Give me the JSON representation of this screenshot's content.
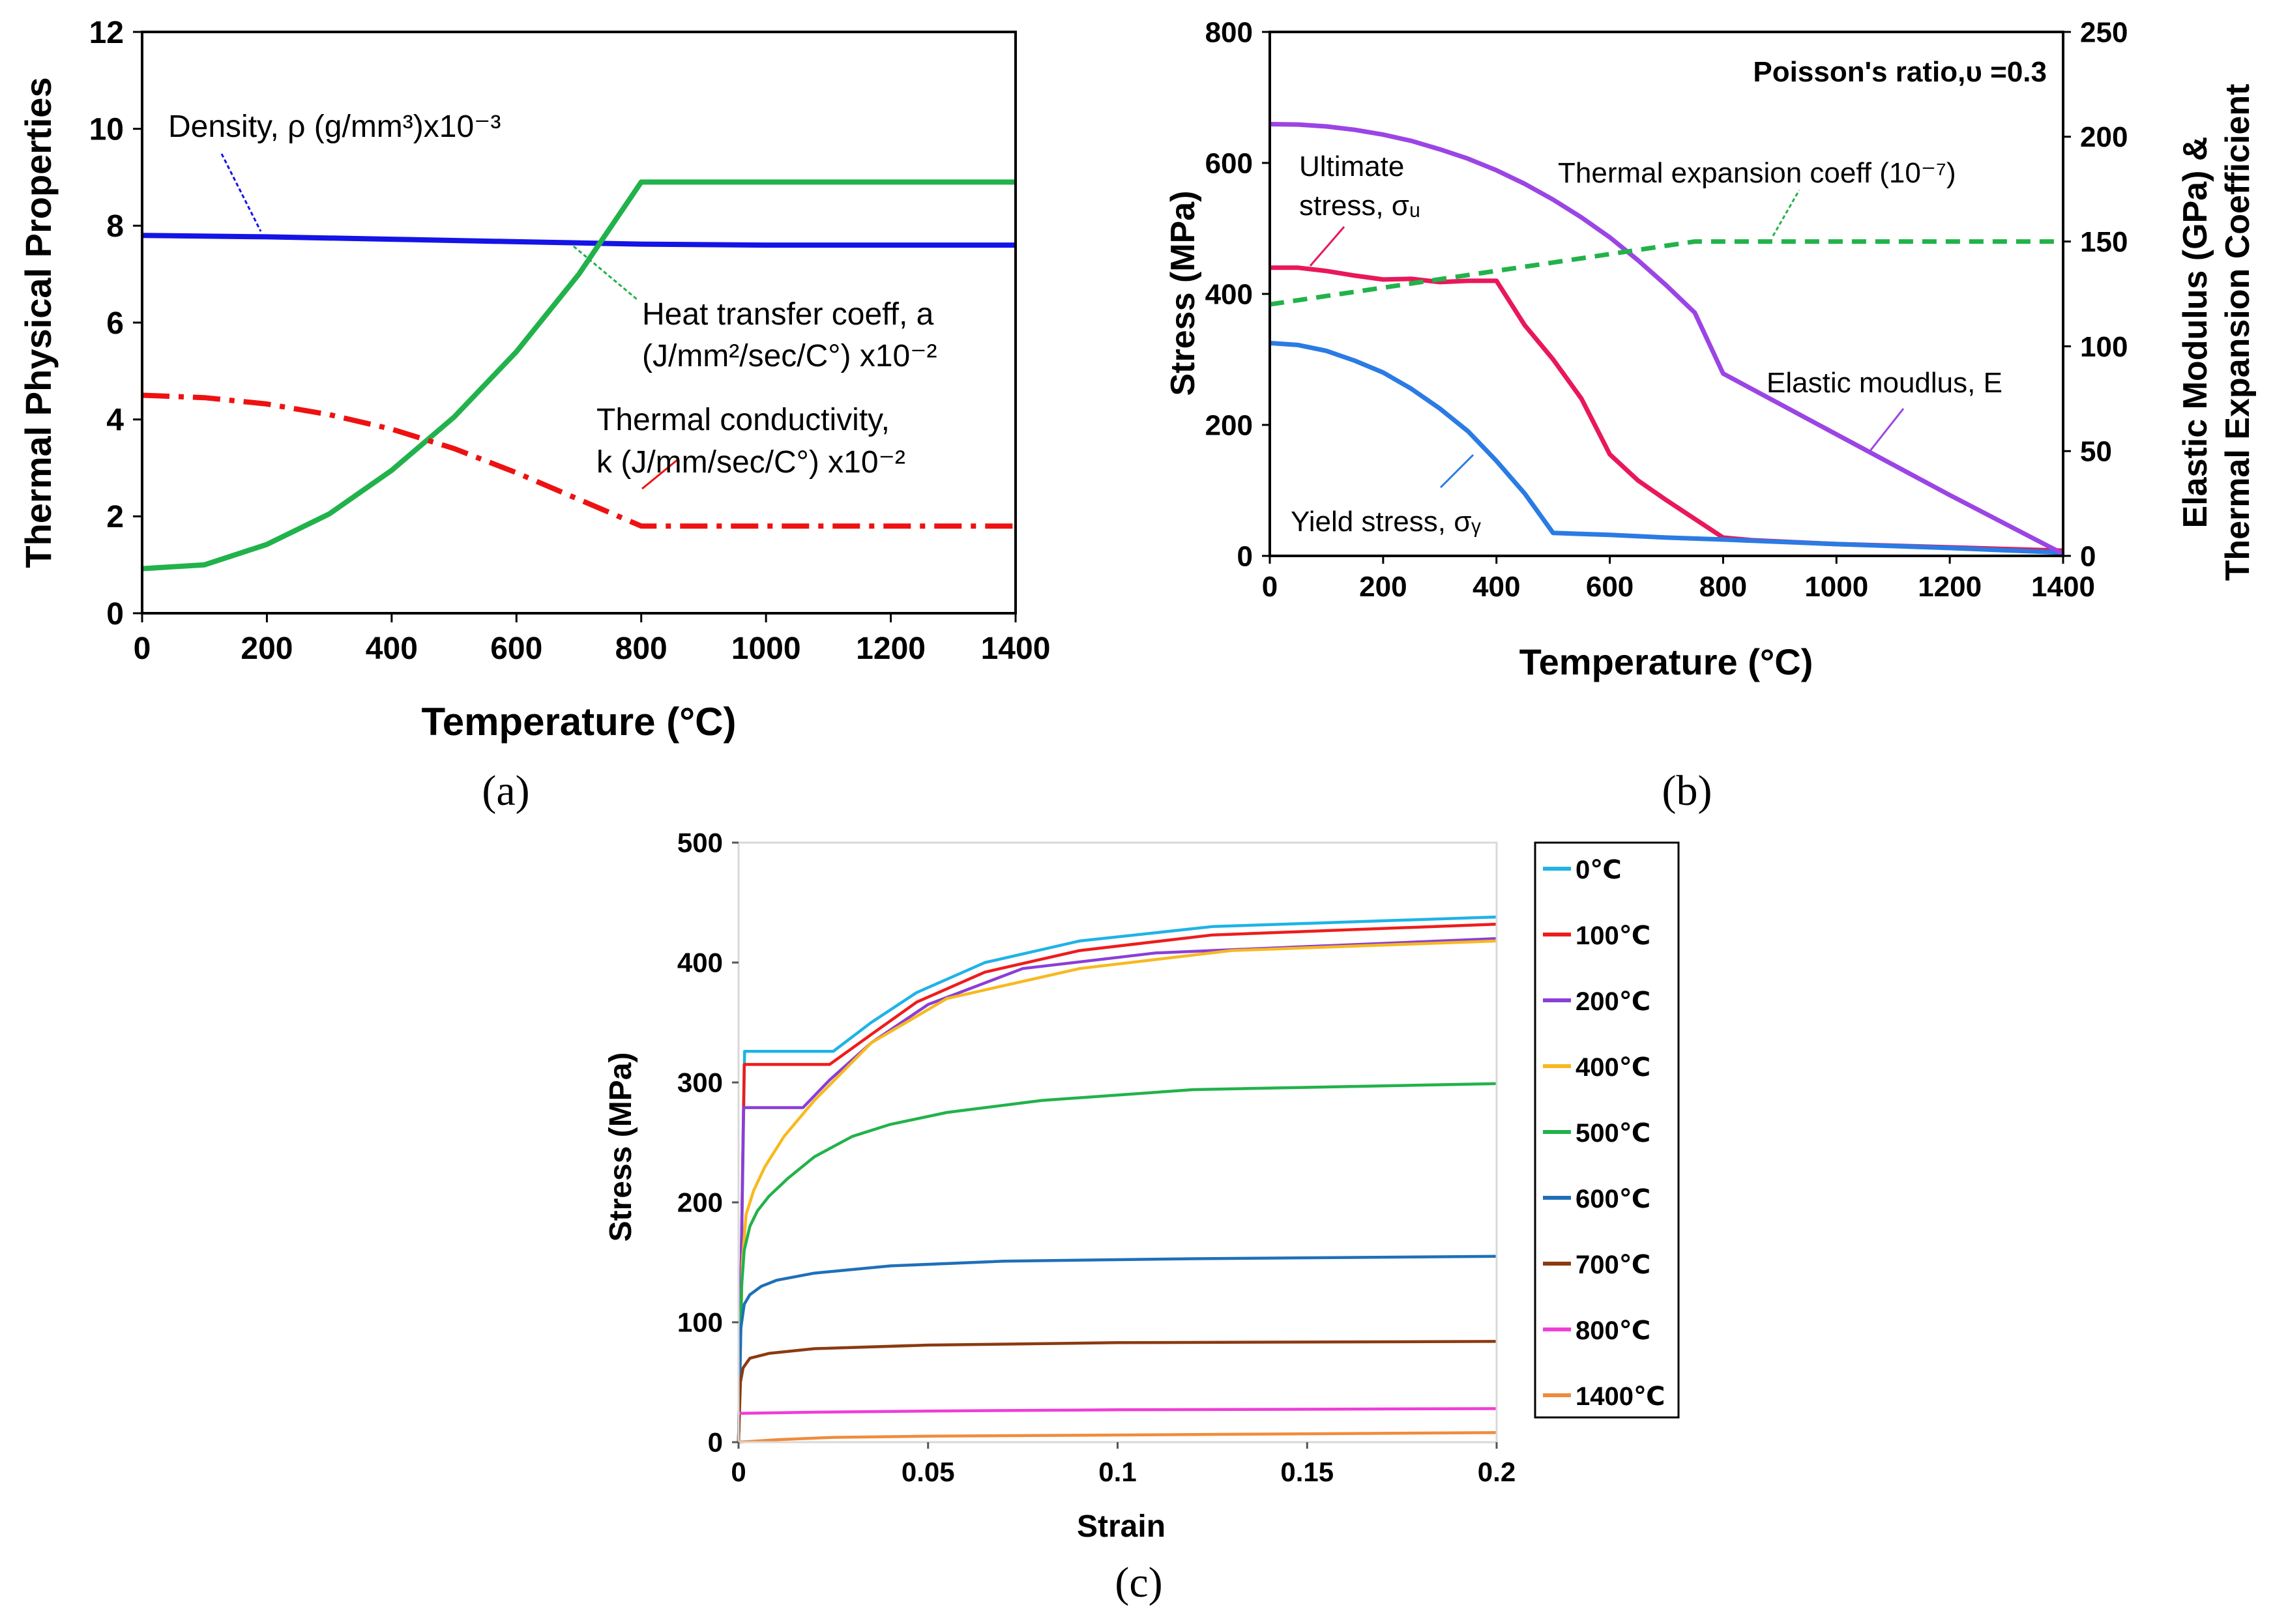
{
  "charts": [
    {
      "type": "line",
      "panel_label": "(a)",
      "xlabel": "Temperature (°C)",
      "ylabel": "Thermal Physical Properties",
      "xlim": [
        0,
        1400
      ],
      "ylim": [
        0,
        12
      ],
      "x_ticks": [
        "0",
        "200",
        "400",
        "600",
        "800",
        "1000",
        "1200",
        "1400"
      ],
      "y_ticks": [
        "0",
        "2",
        "4",
        "6",
        "8",
        "10",
        "12"
      ],
      "grid": false,
      "legend": "none (callout labels)",
      "colors": {
        "density": "#1414e6",
        "heat_transfer": "#21b24b",
        "conductivity": "#ee1111"
      },
      "series": [
        {
          "name": "Density, ρ (g/mm³)x10⁻³",
          "style": "solid",
          "color": "#1414e6",
          "points": [
            [
              0,
              7.8
            ],
            [
              200,
              7.77
            ],
            [
              400,
              7.72
            ],
            [
              600,
              7.67
            ],
            [
              800,
              7.62
            ],
            [
              1000,
              7.6
            ],
            [
              1200,
              7.6
            ],
            [
              1400,
              7.6
            ]
          ]
        },
        {
          "name": "Heat transfer coeff, a (J/mm²/sec/C°) x10⁻²",
          "style": "solid",
          "color": "#21b24b",
          "points": [
            [
              0,
              0.92
            ],
            [
              100,
              1.0
            ],
            [
              200,
              1.42
            ],
            [
              300,
              2.05
            ],
            [
              400,
              2.95
            ],
            [
              500,
              4.05
            ],
            [
              600,
              5.4
            ],
            [
              700,
              7.0
            ],
            [
              800,
              8.9
            ],
            [
              900,
              8.9
            ],
            [
              1000,
              8.9
            ],
            [
              1100,
              8.9
            ],
            [
              1200,
              8.9
            ],
            [
              1300,
              8.9
            ],
            [
              1400,
              8.9
            ]
          ]
        },
        {
          "name": "Thermal conductivity, k (J/mm/sec/C°) x10⁻²",
          "style": "dashdot",
          "color": "#ee1111",
          "points": [
            [
              0,
              4.5
            ],
            [
              100,
              4.45
            ],
            [
              200,
              4.32
            ],
            [
              300,
              4.1
            ],
            [
              400,
              3.8
            ],
            [
              500,
              3.4
            ],
            [
              600,
              2.9
            ],
            [
              700,
              2.35
            ],
            [
              800,
              1.8
            ],
            [
              900,
              1.8
            ],
            [
              1000,
              1.8
            ],
            [
              1100,
              1.8
            ],
            [
              1200,
              1.8
            ],
            [
              1300,
              1.8
            ],
            [
              1400,
              1.8
            ]
          ]
        }
      ]
    },
    {
      "type": "line",
      "panel_label": "(b)",
      "xlabel": "Temperature (°C)",
      "ylabel": "Stress (MPa)",
      "y2label": "Elastic Modulus (GPa) & Thermal Expansion Coefficient",
      "xlim": [
        0,
        1400
      ],
      "ylim": [
        0,
        800
      ],
      "y2lim": [
        0,
        250
      ],
      "x_ticks": [
        "0",
        "200",
        "400",
        "600",
        "800",
        "1000",
        "1200",
        "1400"
      ],
      "y_ticks": [
        "0",
        "200",
        "400",
        "600",
        "800"
      ],
      "y2_ticks": [
        "0",
        "50",
        "100",
        "150",
        "200",
        "250"
      ],
      "grid": false,
      "legend": "none (callout labels)",
      "annotation": "Poisson's ratio,υ =0.3",
      "colors": {
        "ultimate": "#e8185a",
        "yield": "#2a7be4",
        "modulus": "#9b45e4",
        "expansion": "#22b24a"
      },
      "series": [
        {
          "name": "Ultimate stress, σu",
          "axis": "left",
          "style": "solid",
          "color": "#e8185a",
          "points": [
            [
              0,
              440
            ],
            [
              50,
              440
            ],
            [
              100,
              435
            ],
            [
              150,
              428
            ],
            [
              200,
              422
            ],
            [
              250,
              423
            ],
            [
              300,
              418
            ],
            [
              350,
              420
            ],
            [
              400,
              420
            ],
            [
              450,
              352
            ],
            [
              500,
              300
            ],
            [
              550,
              240
            ],
            [
              600,
              155
            ],
            [
              650,
              115
            ],
            [
              700,
              85
            ],
            [
              800,
              28
            ],
            [
              850,
              24
            ],
            [
              1000,
              18
            ],
            [
              1200,
              13
            ],
            [
              1400,
              8
            ]
          ]
        },
        {
          "name": "Yield stress, σy",
          "axis": "left",
          "style": "solid",
          "color": "#2a7be4",
          "points": [
            [
              0,
              325
            ],
            [
              50,
              322
            ],
            [
              100,
              313
            ],
            [
              150,
              298
            ],
            [
              200,
              280
            ],
            [
              250,
              255
            ],
            [
              300,
              225
            ],
            [
              350,
              190
            ],
            [
              400,
              145
            ],
            [
              450,
              95
            ],
            [
              500,
              35
            ],
            [
              600,
              32
            ],
            [
              700,
              28
            ],
            [
              800,
              25
            ],
            [
              1000,
              18
            ],
            [
              1200,
              12
            ],
            [
              1400,
              5
            ]
          ]
        },
        {
          "name": "Elastic moudlus, E",
          "axis": "right",
          "style": "solid",
          "color": "#9b45e4",
          "points": [
            [
              0,
              206
            ],
            [
              50,
              205.8
            ],
            [
              100,
              204.9
            ],
            [
              150,
              203.3
            ],
            [
              200,
              201
            ],
            [
              250,
              198
            ],
            [
              300,
              194
            ],
            [
              350,
              189.5
            ],
            [
              400,
              184
            ],
            [
              450,
              177.5
            ],
            [
              500,
              170
            ],
            [
              550,
              161.5
            ],
            [
              600,
              152
            ],
            [
              650,
              141
            ],
            [
              700,
              129
            ],
            [
              750,
              116
            ],
            [
              800,
              87
            ],
            [
              1000,
              58
            ],
            [
              1200,
              29
            ],
            [
              1400,
              1
            ]
          ]
        },
        {
          "name": "Thermal expansion coeff (10⁻⁷)",
          "axis": "right",
          "style": "dashed",
          "color": "#22b24a",
          "points": [
            [
              0,
              120
            ],
            [
              100,
              124
            ],
            [
              200,
              128
            ],
            [
              300,
              132
            ],
            [
              400,
              136
            ],
            [
              500,
              140
            ],
            [
              600,
              144
            ],
            [
              700,
              148
            ],
            [
              750,
              150
            ],
            [
              900,
              150
            ],
            [
              1000,
              150
            ],
            [
              1200,
              150
            ],
            [
              1400,
              150
            ]
          ]
        }
      ]
    },
    {
      "type": "line",
      "panel_label": "(c)",
      "xlabel": "Strain",
      "ylabel": "Stress (MPa)",
      "xlim": [
        0,
        0.2
      ],
      "ylim": [
        0,
        500
      ],
      "x_ticks": [
        "0",
        "0.05",
        "0.1",
        "0.15",
        "0.2"
      ],
      "y_ticks": [
        "0",
        "100",
        "200",
        "300",
        "400",
        "500"
      ],
      "grid": false,
      "legend": "right",
      "series": [
        {
          "name": "0℃",
          "color": "#1fb3e6",
          "points": [
            [
              0,
              0
            ],
            [
              0.0016,
              326
            ],
            [
              0.025,
              326
            ],
            [
              0.035,
              350
            ],
            [
              0.047,
              375
            ],
            [
              0.065,
              400
            ],
            [
              0.09,
              418
            ],
            [
              0.125,
              430
            ],
            [
              0.2,
              438
            ]
          ]
        },
        {
          "name": "100℃",
          "color": "#ee1c1c",
          "points": [
            [
              0,
              0
            ],
            [
              0.0015,
              315
            ],
            [
              0.024,
              315
            ],
            [
              0.035,
              340
            ],
            [
              0.047,
              367
            ],
            [
              0.065,
              392
            ],
            [
              0.09,
              410
            ],
            [
              0.125,
              423
            ],
            [
              0.2,
              432
            ]
          ]
        },
        {
          "name": "200℃",
          "color": "#8a3fd6",
          "points": [
            [
              0,
              0
            ],
            [
              0.0013,
              279
            ],
            [
              0.017,
              279
            ],
            [
              0.024,
              302
            ],
            [
              0.035,
              333
            ],
            [
              0.05,
              365
            ],
            [
              0.075,
              395
            ],
            [
              0.11,
              408
            ],
            [
              0.2,
              420
            ]
          ]
        },
        {
          "name": "400℃",
          "color": "#f7b91f",
          "points": [
            [
              0,
              0
            ],
            [
              0.001,
              150
            ],
            [
              0.002,
              190
            ],
            [
              0.004,
              210
            ],
            [
              0.007,
              230
            ],
            [
              0.012,
              255
            ],
            [
              0.02,
              285
            ],
            [
              0.035,
              333
            ],
            [
              0.055,
              370
            ],
            [
              0.09,
              395
            ],
            [
              0.13,
              410
            ],
            [
              0.2,
              418
            ]
          ]
        },
        {
          "name": "500℃",
          "color": "#22b24a",
          "points": [
            [
              0,
              0
            ],
            [
              0.0008,
              130
            ],
            [
              0.0015,
              160
            ],
            [
              0.003,
              180
            ],
            [
              0.005,
              193
            ],
            [
              0.008,
              205
            ],
            [
              0.013,
              220
            ],
            [
              0.02,
              238
            ],
            [
              0.03,
              255
            ],
            [
              0.04,
              265
            ],
            [
              0.055,
              275
            ],
            [
              0.08,
              285
            ],
            [
              0.12,
              294
            ],
            [
              0.2,
              299
            ]
          ]
        },
        {
          "name": "600℃",
          "color": "#1f6fb8",
          "points": [
            [
              0,
              0
            ],
            [
              0.0006,
              95
            ],
            [
              0.0015,
              115
            ],
            [
              0.003,
              123
            ],
            [
              0.006,
              130
            ],
            [
              0.01,
              135
            ],
            [
              0.02,
              141
            ],
            [
              0.04,
              147
            ],
            [
              0.07,
              151
            ],
            [
              0.12,
              153
            ],
            [
              0.2,
              155
            ]
          ]
        },
        {
          "name": "700℃",
          "color": "#8b3a10",
          "points": [
            [
              0,
              0
            ],
            [
              0.0005,
              50
            ],
            [
              0.0012,
              62
            ],
            [
              0.003,
              70
            ],
            [
              0.008,
              74
            ],
            [
              0.02,
              78
            ],
            [
              0.05,
              81
            ],
            [
              0.1,
              83
            ],
            [
              0.2,
              84
            ]
          ]
        },
        {
          "name": "800℃",
          "color": "#ef3dd7",
          "points": [
            [
              0,
              24
            ],
            [
              0.02,
              25
            ],
            [
              0.05,
              26
            ],
            [
              0.1,
              27
            ],
            [
              0.2,
              28
            ]
          ]
        },
        {
          "name": "1400℃",
          "color": "#f08c3c",
          "points": [
            [
              0,
              0
            ],
            [
              0.01,
              2
            ],
            [
              0.025,
              4
            ],
            [
              0.05,
              5
            ],
            [
              0.1,
              6
            ],
            [
              0.2,
              8
            ]
          ]
        }
      ]
    }
  ],
  "labels_a": {
    "density": "Density, ρ (g/mm³)x10⁻³",
    "heat_line1": "Heat transfer coeff, a",
    "heat_line2": "(J/mm²/sec/C°) x10⁻²",
    "cond_line1": "Thermal conductivity,",
    "cond_line2": "k (J/mm/sec/C°) x10⁻²"
  },
  "labels_b": {
    "ultimate_line1": "Ultimate",
    "ultimate_line2": "stress, σᵤ",
    "expansion": "Thermal expansion coeff (10⁻⁷)",
    "modulus": "Elastic moudlus, E",
    "yield": "Yield stress, σᵧ",
    "y2_line1": "Elastic Modulus (GPa) &",
    "y2_line2": "Thermal Expansion Coefficient"
  }
}
